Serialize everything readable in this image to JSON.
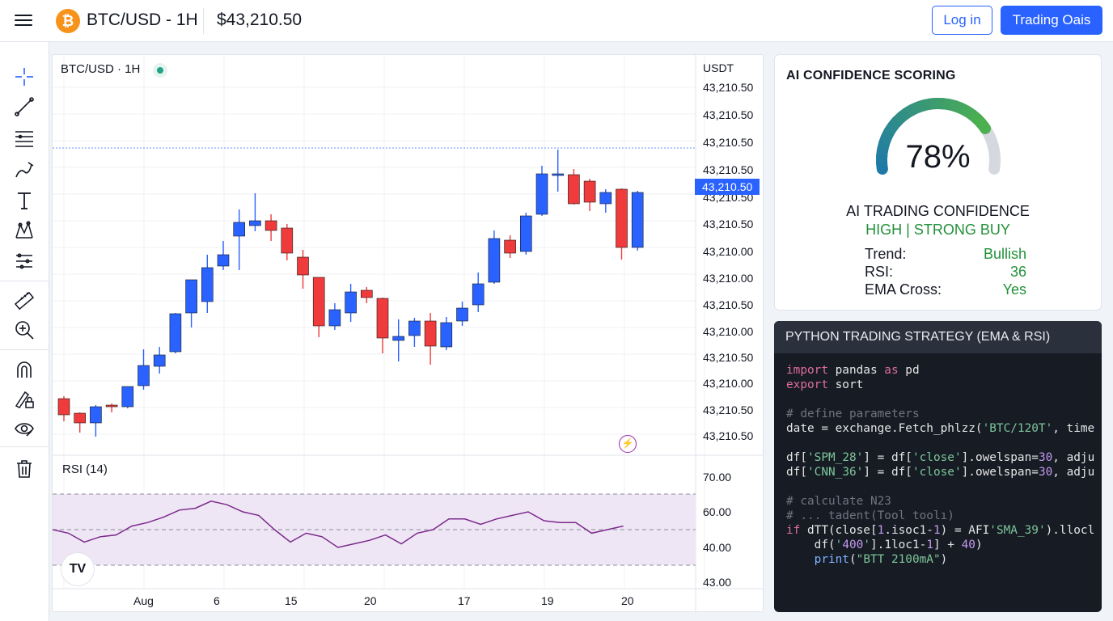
{
  "header": {
    "symbol_title": "BTC/USD - 1H",
    "price": "$43,210.50",
    "login_label": "Log in",
    "trade_label": "Trading Oais",
    "logo_glyph": "₿"
  },
  "toolbar": {
    "tools": [
      "crosshair-icon",
      "trend-line-icon",
      "horizontal-lines-icon",
      "brush-icon",
      "text-icon",
      "pattern-icon",
      "prediction-icon",
      "ruler-icon",
      "zoom-in-icon",
      "magnet-icon",
      "lock-drawing-icon",
      "eye-icon",
      "trash-icon"
    ]
  },
  "chart": {
    "symbol_label": "BTC/USD · 1H",
    "unit_label": "USDT",
    "price_labels": [
      "43,210.50",
      "43,210.50",
      "43,210.50",
      "43,210.50",
      "43,210.50",
      "43,210.50",
      "43,210.00",
      "43,210.00",
      "43,210.50",
      "43,210.00",
      "43,210.50",
      "43,210.00",
      "43,210.50",
      "43,210.50"
    ],
    "current_price_tag": "43,210.50",
    "rsi_title": "RSI (14)",
    "rsi_labels": [
      "70.00",
      "60.00",
      "40.00",
      "43.00"
    ],
    "x_labels": [
      "Aug",
      "6",
      "15",
      "20",
      "17",
      "19",
      "20"
    ],
    "tv_logo": "TV",
    "bolt_glyph": "⚡",
    "colors": {
      "up": "#2962ff",
      "down": "#ef3b3b",
      "rsi_line": "#7b2a8c",
      "rsi_band": "#efe6f5"
    }
  },
  "chart_data": {
    "type": "candlestick",
    "candles": [
      {
        "o": 30,
        "c": 10,
        "h": 33,
        "l": 2
      },
      {
        "o": 12,
        "c": 0,
        "h": 13,
        "l": -12
      },
      {
        "o": 0,
        "c": 20,
        "h": 22,
        "l": -17
      },
      {
        "o": 22,
        "c": 20,
        "h": 24,
        "l": 13
      },
      {
        "o": 20,
        "c": 45,
        "h": 45,
        "l": 18
      },
      {
        "o": 46,
        "c": 71,
        "h": 91,
        "l": 41
      },
      {
        "o": 70,
        "c": 84,
        "h": 94,
        "l": 61
      },
      {
        "o": 88,
        "c": 135,
        "h": 136,
        "l": 86
      },
      {
        "o": 136,
        "c": 177,
        "h": 177,
        "l": 118
      },
      {
        "o": 150,
        "c": 192,
        "h": 208,
        "l": 136
      },
      {
        "o": 194,
        "c": 208,
        "h": 225,
        "l": 189
      },
      {
        "o": 231,
        "c": 248,
        "h": 264,
        "l": 189
      },
      {
        "o": 244,
        "c": 250,
        "h": 284,
        "l": 237
      },
      {
        "o": 250,
        "c": 238,
        "h": 258,
        "l": 225
      },
      {
        "o": 241,
        "c": 210,
        "h": 246,
        "l": 201
      },
      {
        "o": 205,
        "c": 183,
        "h": 214,
        "l": 166
      },
      {
        "o": 180,
        "c": 120,
        "h": 180,
        "l": 106
      },
      {
        "o": 120,
        "c": 140,
        "h": 148,
        "l": 115
      },
      {
        "o": 136,
        "c": 162,
        "h": 172,
        "l": 125
      },
      {
        "o": 164,
        "c": 155,
        "h": 168,
        "l": 148
      },
      {
        "o": 154,
        "c": 105,
        "h": 155,
        "l": 86
      },
      {
        "o": 102,
        "c": 107,
        "h": 128,
        "l": 76
      },
      {
        "o": 108,
        "c": 126,
        "h": 130,
        "l": 94
      },
      {
        "o": 126,
        "c": 95,
        "h": 136,
        "l": 72
      },
      {
        "o": 94,
        "c": 124,
        "h": 131,
        "l": 90
      },
      {
        "o": 126,
        "c": 142,
        "h": 150,
        "l": 120
      },
      {
        "o": 146,
        "c": 172,
        "h": 186,
        "l": 137
      },
      {
        "o": 174,
        "c": 228,
        "h": 238,
        "l": 172
      },
      {
        "o": 226,
        "c": 210,
        "h": 232,
        "l": 204
      },
      {
        "o": 212,
        "c": 256,
        "h": 260,
        "l": 208
      },
      {
        "o": 258,
        "c": 308,
        "h": 318,
        "l": 256
      },
      {
        "o": 306,
        "c": 308,
        "h": 338,
        "l": 286
      },
      {
        "o": 307,
        "c": 271,
        "h": 314,
        "l": 270
      },
      {
        "o": 299,
        "c": 273,
        "h": 302,
        "l": 262
      },
      {
        "o": 271,
        "c": 285,
        "h": 289,
        "l": 260
      },
      {
        "o": 289,
        "c": 217,
        "h": 290,
        "l": 202
      },
      {
        "o": 217,
        "c": 285,
        "h": 287,
        "l": 213
      }
    ],
    "rsi": [
      50,
      48,
      43,
      46,
      47,
      52,
      54,
      57,
      61,
      62,
      66,
      64,
      60,
      58,
      50,
      43,
      48,
      46,
      40,
      42,
      44,
      47,
      42,
      48,
      50,
      56,
      56,
      53,
      56,
      58,
      60,
      55,
      54,
      54,
      48,
      50,
      52
    ],
    "rsi_levels": [
      70,
      50,
      30
    ]
  },
  "confidence": {
    "title": "AI CONFIDENCE SCORING",
    "value": "78%",
    "value_fraction": 0.78,
    "subtitle": "AI TRADING CONFIDENCE",
    "signal": "HIGH | STRONG BUY",
    "stats": [
      {
        "key": "Trend:",
        "value": "Bullish"
      },
      {
        "key": "RSI:",
        "value": "36"
      },
      {
        "key": "EMA Cross:",
        "value": "Yes"
      }
    ]
  },
  "code": {
    "title": "PYTHON TRADING STRATEGY (EMA & RSI)",
    "lines": [
      "import pandas as pd",
      "export sort",
      "",
      "# define parameters",
      "date = exchange.Fetch_phlzz('BTC/120T', time",
      "",
      "df['SPM_28'] = df['close'].owelspan=30, adju",
      "df['CNN_36'] = df['close'].owelspan=30, adju",
      "",
      "# calculate N23",
      "# ... tadent(Tool toolı)",
      "if dTT(close[1.isoc1-1) = AFI'SMA_39').llocl",
      "    df('400'].1loc1-1] + 40)",
      "    print(\"BTT 2100mA\")"
    ]
  }
}
